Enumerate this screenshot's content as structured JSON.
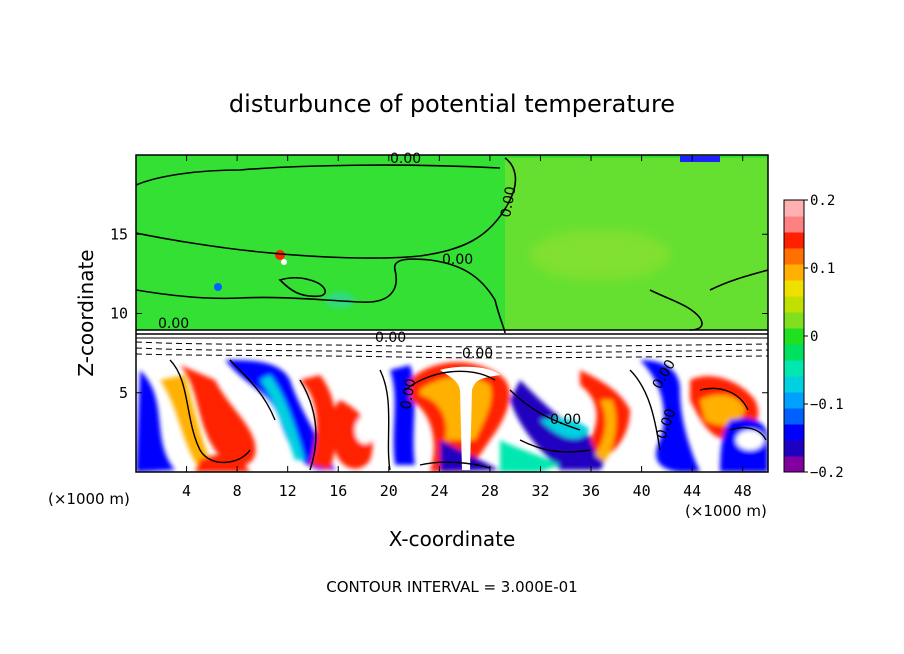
{
  "chart_data": {
    "type": "heatmap",
    "title": "disturbunce of potential temperature",
    "xlabel": "X-coordinate",
    "ylabel": "Z-coordinate",
    "x_unit_left": "(×1000 m)",
    "x_unit_right": "(×1000 m)",
    "xlim": [
      0,
      50
    ],
    "ylim": [
      0,
      20
    ],
    "x_ticks": [
      "4",
      "8",
      "12",
      "16",
      "20",
      "24",
      "28",
      "32",
      "36",
      "40",
      "44",
      "48"
    ],
    "x_tick_values": [
      4,
      8,
      12,
      16,
      20,
      24,
      28,
      32,
      36,
      40,
      44,
      48
    ],
    "y_ticks": [
      "5",
      "10",
      "15"
    ],
    "y_tick_values": [
      5,
      10,
      15
    ],
    "colorbar": {
      "range": [
        -0.2,
        0.2
      ],
      "tick_labels": [
        "0.2",
        "0.1",
        "0",
        "−0.1",
        "−0.2"
      ],
      "tick_values": [
        0.2,
        0.1,
        0,
        -0.1,
        -0.2
      ],
      "colors": [
        "#8000a0",
        "#2000c0",
        "#0000ff",
        "#0060ff",
        "#00a0ff",
        "#00d0e0",
        "#00e8b0",
        "#00e060",
        "#20e020",
        "#80e020",
        "#c0e000",
        "#f0e000",
        "#ffb000",
        "#ff7000",
        "#ff2000",
        "#ff8080",
        "#ffb0b0"
      ]
    },
    "contour_labels": [
      "0.00",
      "0.00",
      "0.00",
      "0.00",
      "0.00",
      "0.00",
      "0.00",
      "0.00",
      "0.00",
      "0.00"
    ],
    "contour_interval_text": "CONTOUR INTERVAL = 3.000E-01"
  }
}
